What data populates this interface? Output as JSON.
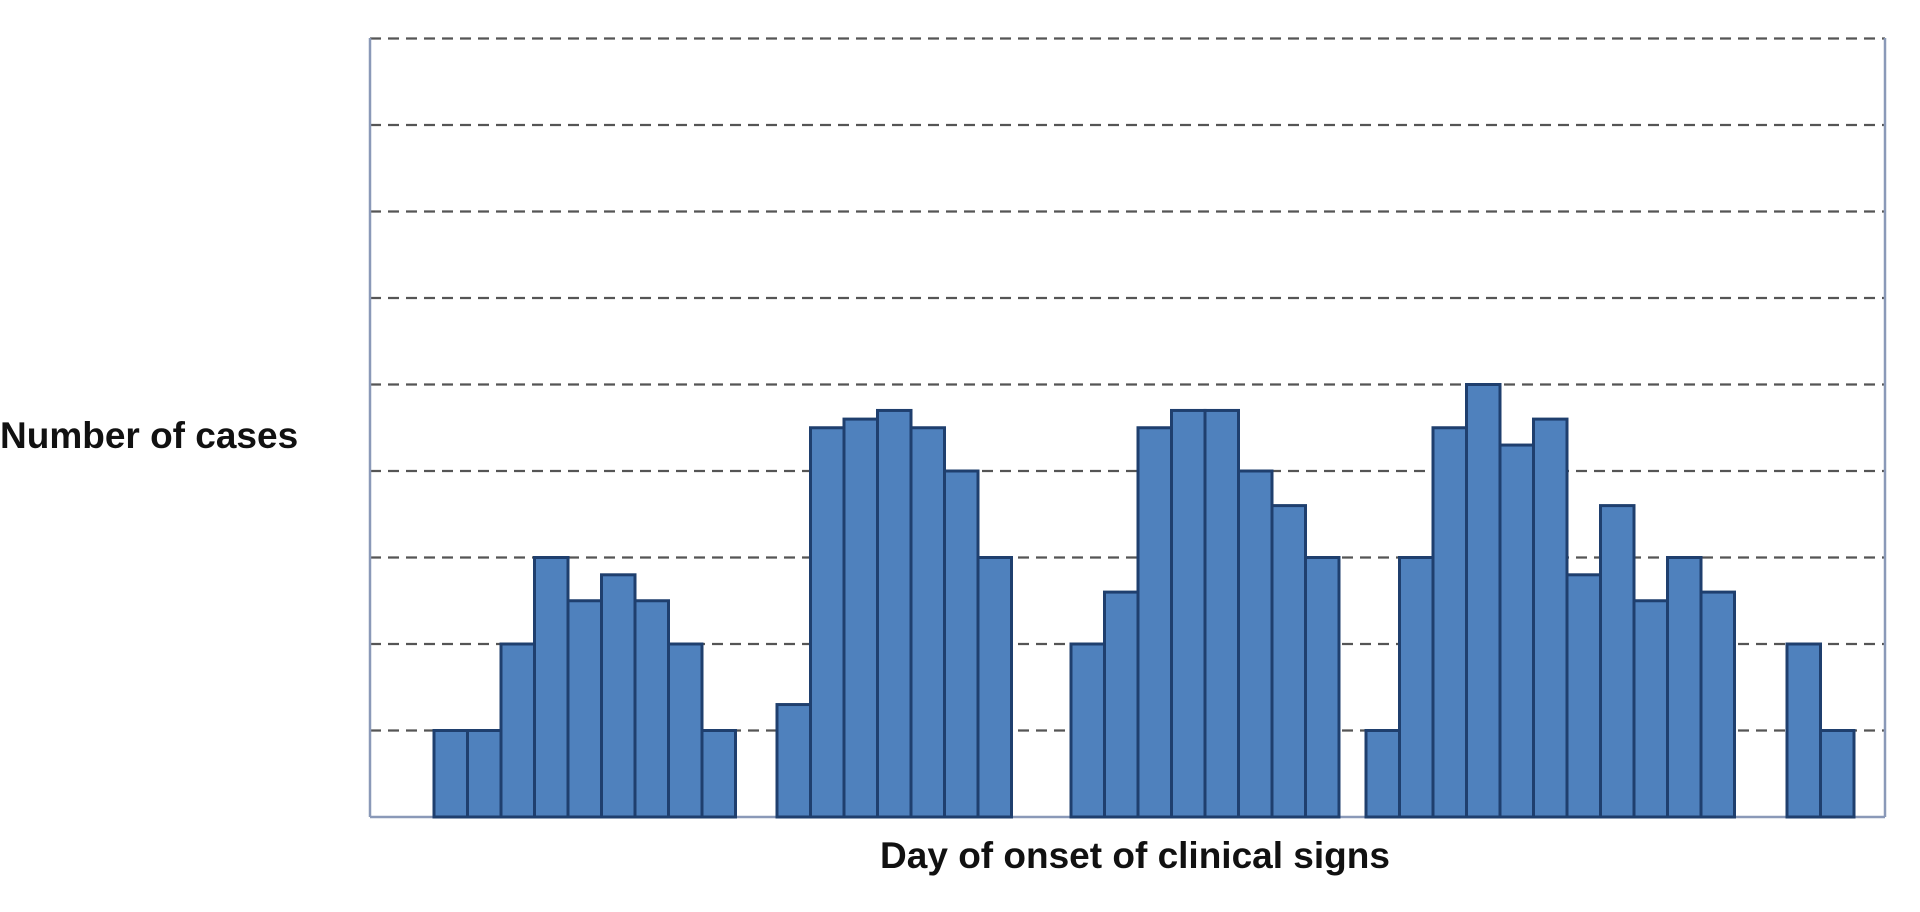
{
  "chart_data": {
    "type": "bar",
    "title": "",
    "xlabel": "Day of onset of clinical signs",
    "ylabel": "Number of cases",
    "ylim": [
      0,
      9
    ],
    "grid": "horizontal dashed",
    "legend": "none",
    "bar_color": "#4f81bd",
    "bar_border_color": "#1f3f6e",
    "groups": [
      {
        "values": [
          1,
          1,
          2,
          3,
          2.5,
          2.8,
          2.5,
          2,
          1
        ]
      },
      {
        "values": [
          1.3,
          4.5,
          4.6,
          4.7,
          4.5,
          4,
          3
        ]
      },
      {
        "values": [
          2,
          2.6,
          4.5,
          4.7,
          4.7,
          4,
          3.6,
          3
        ]
      },
      {
        "values": [
          1,
          3,
          4.5,
          5,
          4.3,
          4.6,
          2.8,
          3.6,
          2.5,
          3,
          2.6
        ]
      },
      {
        "values": [
          2,
          1
        ]
      }
    ]
  }
}
